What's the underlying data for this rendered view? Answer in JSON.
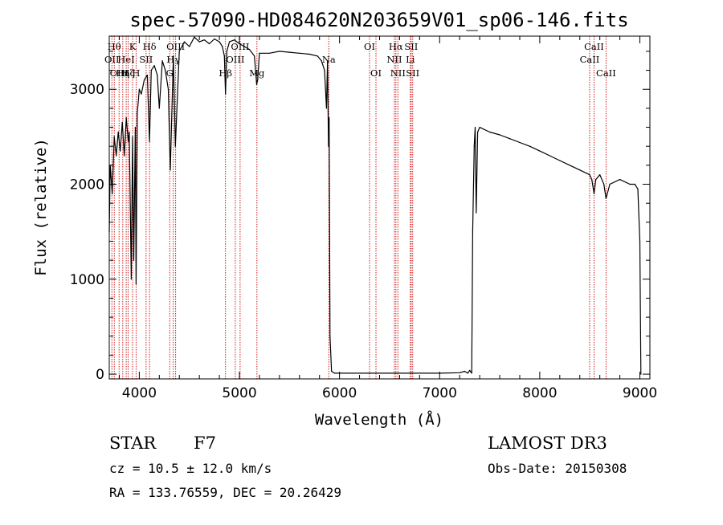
{
  "chart_data": {
    "type": "line",
    "title": "spec-57090-HD084620N203659V01_sp06-146.fits",
    "xlabel": "Wavelength (Å)",
    "ylabel": "Flux (relative)",
    "xlim": [
      3700,
      9100
    ],
    "ylim": [
      -50,
      3560
    ],
    "x_ticks": [
      4000,
      5000,
      6000,
      7000,
      8000,
      9000
    ],
    "x_tick_labels": [
      "4000",
      "5000",
      "6000",
      "7000",
      "8000",
      "9000"
    ],
    "y_ticks": [
      0,
      1000,
      2000,
      3000
    ],
    "y_tick_labels": [
      "0",
      "1000",
      "2000",
      "3000"
    ],
    "grid": false,
    "series": [
      {
        "color": "#000000",
        "x": [
          3700,
          3710,
          3730,
          3750,
          3770,
          3790,
          3810,
          3830,
          3850,
          3870,
          3889,
          3900,
          3920,
          3933,
          3945,
          3960,
          3968,
          3980,
          4000,
          4020,
          4050,
          4080,
          4102,
          4120,
          4150,
          4180,
          4200,
          4230,
          4260,
          4290,
          4310,
          4340,
          4360,
          4400,
          4450,
          4500,
          4550,
          4600,
          4650,
          4700,
          4750,
          4800,
          4830,
          4850,
          4861,
          4875,
          4900,
          4950,
          5000,
          5050,
          5100,
          5150,
          5172,
          5183,
          5200,
          5300,
          5400,
          5500,
          5600,
          5700,
          5780,
          5820,
          5850,
          5870,
          5880,
          5890,
          5896,
          5905,
          5920,
          5950,
          6000,
          6500,
          7000,
          7200,
          7250,
          7280,
          7300,
          7320,
          7330,
          7345,
          7355,
          7365,
          7380,
          7400,
          7500,
          7600,
          7700,
          7800,
          7900,
          8000,
          8100,
          8200,
          8300,
          8400,
          8498,
          8520,
          8542,
          8560,
          8600,
          8640,
          8662,
          8700,
          8800,
          8900,
          8950,
          8980,
          9000,
          9010
        ],
        "y": [
          1500,
          2200,
          1900,
          2500,
          2300,
          2550,
          2350,
          2650,
          2300,
          2700,
          2450,
          2550,
          1000,
          2500,
          1200,
          2600,
          950,
          2750,
          3000,
          2950,
          3100,
          3150,
          2450,
          3200,
          3250,
          3150,
          2800,
          3300,
          3200,
          3000,
          2150,
          3350,
          2400,
          3400,
          3500,
          3450,
          3550,
          3500,
          3520,
          3480,
          3530,
          3500,
          3450,
          3350,
          2950,
          3400,
          3500,
          3520,
          3480,
          3450,
          3420,
          3350,
          3050,
          3100,
          3380,
          3380,
          3400,
          3390,
          3380,
          3370,
          3350,
          3300,
          3200,
          2800,
          3300,
          2400,
          2700,
          400,
          30,
          10,
          10,
          10,
          10,
          15,
          30,
          10,
          40,
          10,
          1500,
          2400,
          2600,
          1700,
          2550,
          2600,
          2550,
          2520,
          2480,
          2440,
          2400,
          2350,
          2300,
          2250,
          2200,
          2150,
          2100,
          2050,
          1900,
          2050,
          2100,
          2000,
          1850,
          2000,
          2050,
          2000,
          2000,
          1950,
          1400,
          0
        ]
      }
    ],
    "line_markers": [
      {
        "wavelength": 3726,
        "label": "OII",
        "row": 1
      },
      {
        "wavelength": 3750,
        "label": "Hθ",
        "row": 0
      },
      {
        "wavelength": 3798,
        "label": "OIII",
        "row": 2
      },
      {
        "wavelength": 3835,
        "label": "Hη",
        "row": 2
      },
      {
        "wavelength": 3869,
        "label": "HeI",
        "row": 1
      },
      {
        "wavelength": 3889,
        "label": "Hζ",
        "row": 2
      },
      {
        "wavelength": 3933,
        "label": "K",
        "row": 0
      },
      {
        "wavelength": 3968,
        "label": "H",
        "row": 2
      },
      {
        "wavelength": 4068,
        "label": "SII",
        "row": 1
      },
      {
        "wavelength": 4102,
        "label": "Hδ",
        "row": 0
      },
      {
        "wavelength": 4304,
        "label": "G",
        "row": 2
      },
      {
        "wavelength": 4340,
        "label": "Hγ",
        "row": 1
      },
      {
        "wavelength": 4363,
        "label": "OIII",
        "row": 0
      },
      {
        "wavelength": 4861,
        "label": "Hβ",
        "row": 2
      },
      {
        "wavelength": 4959,
        "label": "OIII",
        "row": 1
      },
      {
        "wavelength": 5007,
        "label": "OIII",
        "row": 0
      },
      {
        "wavelength": 5175,
        "label": "Mg",
        "row": 2
      },
      {
        "wavelength": 5893,
        "label": "Na",
        "row": 1
      },
      {
        "wavelength": 6300,
        "label": "OI",
        "row": 0
      },
      {
        "wavelength": 6364,
        "label": "OI",
        "row": 2
      },
      {
        "wavelength": 6548,
        "label": "NII",
        "row": 1
      },
      {
        "wavelength": 6563,
        "label": "Hα",
        "row": 0
      },
      {
        "wavelength": 6583,
        "label": "NII",
        "row": 2
      },
      {
        "wavelength": 6707,
        "label": "Li",
        "row": 1
      },
      {
        "wavelength": 6716,
        "label": "SII",
        "row": 0
      },
      {
        "wavelength": 6731,
        "label": "SII",
        "row": 2
      },
      {
        "wavelength": 8498,
        "label": "CaII",
        "row": 1
      },
      {
        "wavelength": 8542,
        "label": "CaII",
        "row": 0
      },
      {
        "wavelength": 8662,
        "label": "CaII",
        "row": 2
      }
    ],
    "marker_color": "#cc0000"
  },
  "info": {
    "object_class": "STAR",
    "subclass": "F7",
    "survey": "LAMOST DR3",
    "cz": "cz = 10.5 ± 12.0 km/s",
    "obs_date": "Obs-Date: 20150308",
    "coords": "RA = 133.76559, DEC =  20.26429"
  }
}
